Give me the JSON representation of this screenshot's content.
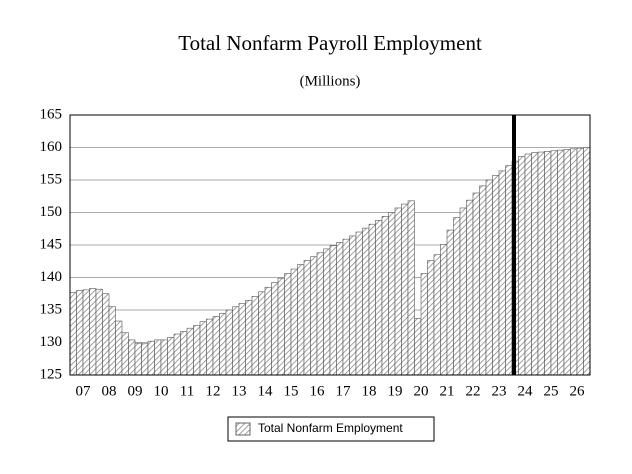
{
  "chart_data": {
    "type": "bar",
    "title": "Total Nonfarm Payroll Employment",
    "subtitle": "(Millions)",
    "legend": "Total Nonfarm Employment",
    "color": "#c8c8c8",
    "grid": true,
    "ylim": [
      125,
      165
    ],
    "yticks": [
      125,
      130,
      135,
      140,
      145,
      150,
      155,
      160,
      165
    ],
    "categories": [
      null,
      "07",
      null,
      null,
      null,
      "08",
      null,
      null,
      null,
      "09",
      null,
      null,
      null,
      "10",
      null,
      null,
      null,
      "11",
      null,
      null,
      null,
      "12",
      null,
      null,
      null,
      "13",
      null,
      null,
      null,
      "14",
      null,
      null,
      null,
      "15",
      null,
      null,
      null,
      "16",
      null,
      null,
      null,
      "17",
      null,
      null,
      null,
      "18",
      null,
      null,
      null,
      "19",
      null,
      null,
      null,
      "20",
      null,
      null,
      null,
      "21",
      null,
      null,
      null,
      "22",
      null,
      null,
      null,
      "23",
      null,
      null,
      null,
      "24",
      null,
      null,
      null,
      "25",
      null,
      null,
      null,
      "26",
      null,
      null
    ],
    "values": [
      137.7,
      138.0,
      138.1,
      138.3,
      138.2,
      137.5,
      135.5,
      133.3,
      131.5,
      130.4,
      129.9,
      129.8,
      130.2,
      130.4,
      130.4,
      130.8,
      131.3,
      131.7,
      132.2,
      132.6,
      133.2,
      133.6,
      134.0,
      134.5,
      135.0,
      135.5,
      136.0,
      136.5,
      137.1,
      137.8,
      138.5,
      139.2,
      139.9,
      140.6,
      141.3,
      142.0,
      142.6,
      143.2,
      143.8,
      144.4,
      144.9,
      145.4,
      145.9,
      146.4,
      147.0,
      147.6,
      148.2,
      148.8,
      149.4,
      150.0,
      150.7,
      151.3,
      151.8,
      133.7,
      140.6,
      142.6,
      143.5,
      145.1,
      147.3,
      149.2,
      150.7,
      151.9,
      153.0,
      154.1,
      155.0,
      155.7,
      156.4,
      157.2,
      157.9,
      158.6,
      159.0,
      159.2,
      159.3,
      159.4,
      159.5,
      159.6,
      159.7,
      159.8,
      159.9,
      160.0
    ]
  }
}
